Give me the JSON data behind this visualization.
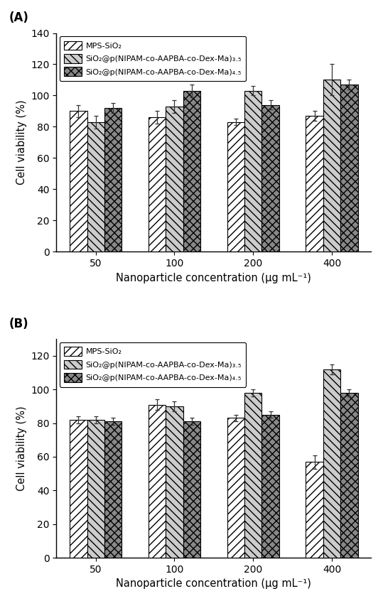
{
  "panel_A": {
    "title": "(A)",
    "concentrations": [
      "50",
      "100",
      "200",
      "400"
    ],
    "series": [
      {
        "label": "MPS-SiO₂",
        "values": [
          90,
          86,
          83,
          87
        ],
        "errors": [
          4,
          4,
          2,
          3
        ],
        "hatch": "///",
        "facecolor": "#ffffff"
      },
      {
        "label": "SiO₂@p(NIPAM-co-AAPBA-co-Dex-Ma)₃.₅",
        "values": [
          83,
          93,
          103,
          110
        ],
        "errors": [
          4,
          4,
          3,
          10
        ],
        "hatch": "\\\\\\",
        "facecolor": "#cccccc"
      },
      {
        "label": "SiO₂@p(NIPAM-co-AAPBA-co-Dex-Ma)₄.₅",
        "values": [
          92,
          103,
          94,
          107
        ],
        "errors": [
          3,
          4,
          3,
          3
        ],
        "hatch": "xxx",
        "facecolor": "#888888"
      }
    ],
    "ylim": [
      0,
      140
    ],
    "yticks": [
      0,
      20,
      40,
      60,
      80,
      100,
      120,
      140
    ],
    "ylabel": "Cell viability (%)",
    "xlabel": "Nanoparticle concentration (μg mL⁻¹)"
  },
  "panel_B": {
    "title": "(B)",
    "concentrations": [
      "50",
      "100",
      "200",
      "400"
    ],
    "series": [
      {
        "label": "MPS-SiO₂",
        "values": [
          82,
          91,
          83,
          57
        ],
        "errors": [
          2,
          3,
          2,
          4
        ],
        "hatch": "///",
        "facecolor": "#ffffff"
      },
      {
        "label": "SiO₂@p(NIPAM-co-AAPBA-co-Dex-Ma)₃.₅",
        "values": [
          82,
          90,
          98,
          112
        ],
        "errors": [
          2,
          3,
          2,
          3
        ],
        "hatch": "\\\\\\",
        "facecolor": "#cccccc"
      },
      {
        "label": "SiO₂@p(NIPAM-co-AAPBA-co-Dex-Ma)₄.₅",
        "values": [
          81,
          81,
          85,
          98
        ],
        "errors": [
          2,
          2,
          2,
          2
        ],
        "hatch": "xxx",
        "facecolor": "#888888"
      }
    ],
    "ylim": [
      0,
      130
    ],
    "yticks": [
      0,
      20,
      40,
      60,
      80,
      100,
      120
    ],
    "ylabel": "Cell viability (%)",
    "xlabel": "Nanoparticle concentration (μg mL⁻¹)"
  },
  "bar_width": 0.22,
  "edge_color": "#000000",
  "error_color": "#555555",
  "background_color": "#ffffff",
  "figure_width": 5.39,
  "figure_height": 8.46,
  "dpi": 100
}
